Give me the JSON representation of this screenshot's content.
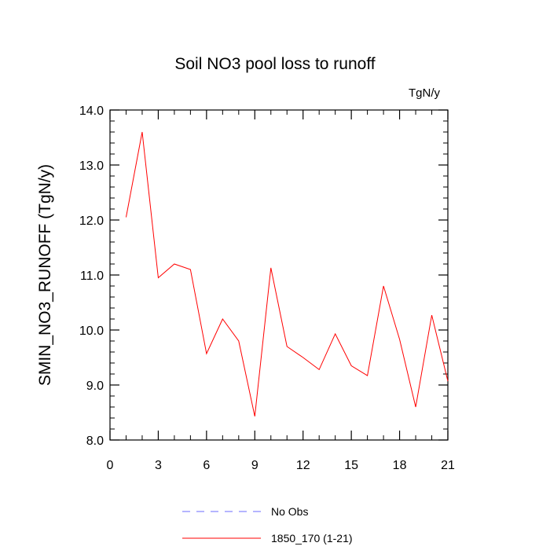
{
  "chart_data": {
    "type": "line",
    "title": "Soil NO3 pool loss to runoff",
    "units_label": "TgN/y",
    "ylabel": "SMIN_NO3_RUNOFF  (TgN/y)",
    "xlabel": "",
    "xlim": [
      0,
      21
    ],
    "ylim": [
      8.0,
      14.0
    ],
    "x_ticks": [
      0,
      3,
      6,
      9,
      12,
      15,
      18,
      21
    ],
    "x_tick_labels": [
      "0",
      "3",
      "6",
      "9",
      "12",
      "15",
      "18",
      "21"
    ],
    "y_ticks": [
      8.0,
      9.0,
      10.0,
      11.0,
      12.0,
      13.0,
      14.0
    ],
    "y_tick_labels": [
      "8.0",
      "9.0",
      "10.0",
      "11.0",
      "12.0",
      "13.0",
      "14.0"
    ],
    "grid": false,
    "legend_position": "bottom",
    "series": [
      {
        "name": "No Obs",
        "color": "#6b6bff",
        "dash": "dashed",
        "x": [],
        "values": []
      },
      {
        "name": "1850_170 (1-21)",
        "color": "#ff0000",
        "dash": "solid",
        "x": [
          1,
          2,
          3,
          4,
          5,
          6,
          7,
          8,
          9,
          10,
          11,
          12,
          13,
          14,
          15,
          16,
          17,
          18,
          19,
          20,
          21
        ],
        "values": [
          12.05,
          13.6,
          10.95,
          11.2,
          11.1,
          9.57,
          10.2,
          9.8,
          8.43,
          11.13,
          9.7,
          9.5,
          9.28,
          9.93,
          9.35,
          9.17,
          10.8,
          9.83,
          8.6,
          10.27,
          9.07
        ]
      }
    ]
  }
}
